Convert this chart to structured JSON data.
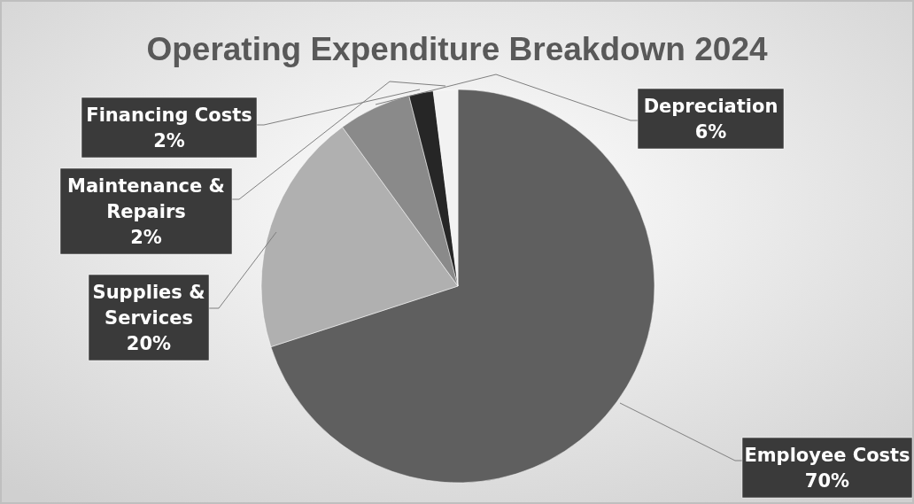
{
  "chart_data": {
    "type": "pie",
    "title": "Operating Expenditure Breakdown 2024",
    "categories": [
      "Employee Costs",
      "Supplies & Services",
      "Depreciation",
      "Financing Costs",
      "Maintenance & Repairs"
    ],
    "values": [
      70,
      20,
      6,
      2,
      2
    ],
    "value_labels": [
      "70%",
      "20%",
      "6%",
      "2%",
      "2%"
    ],
    "colors": [
      "#5f5f5f",
      "#b0b0b0",
      "#8a8a8a",
      "#262626",
      "#f2f2f2"
    ]
  }
}
